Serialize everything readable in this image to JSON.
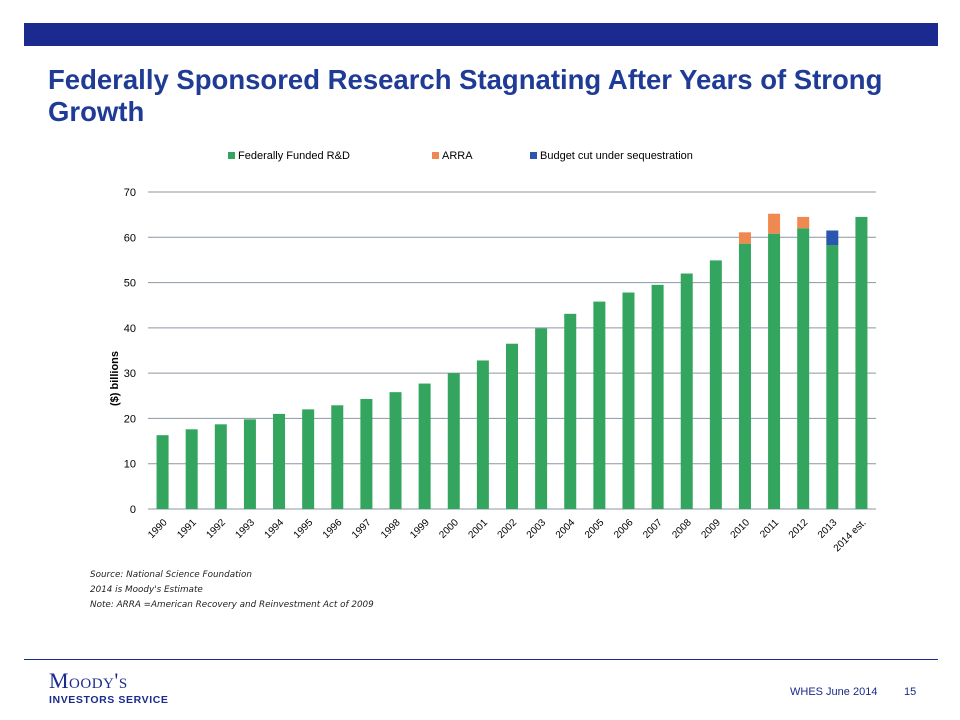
{
  "slide": {
    "title": "Federally Sponsored Research Stagnating After Years of Strong Growth",
    "notes": [
      "Source: National Science Foundation",
      "2014 is Moody's Estimate",
      "Note:  ARRA =American Recovery and Reinvestment Act of 2009"
    ],
    "footer_label": "WHES June 2014",
    "page_number": "15",
    "logo_word": "Moody's",
    "logo_sub": "INVESTORS SERVICE"
  },
  "colors": {
    "brand_blue": "#1b2a8e",
    "title_blue": "#1f3b96",
    "gridline": "#8c97a4",
    "axis_text": "#000000"
  },
  "chart_data": {
    "type": "bar",
    "stacked": true,
    "title": "",
    "xlabel": "",
    "ylabel": "($) billions",
    "ylim": [
      0,
      70
    ],
    "yticks": [
      0,
      10,
      20,
      30,
      40,
      50,
      60,
      70
    ],
    "grid": true,
    "legend_position": "top",
    "categories": [
      "1990",
      "1991",
      "1992",
      "1993",
      "1994",
      "1995",
      "1996",
      "1997",
      "1998",
      "1999",
      "2000",
      "2001",
      "2002",
      "2003",
      "2004",
      "2005",
      "2006",
      "2007",
      "2008",
      "2009",
      "2010",
      "2011",
      "2012",
      "2013",
      "2014 est."
    ],
    "series": [
      {
        "name": "Federally Funded R&D",
        "color": "#33a55e",
        "values": [
          16.3,
          17.6,
          18.7,
          19.8,
          21.0,
          22.0,
          22.9,
          24.3,
          25.8,
          27.7,
          30.0,
          32.8,
          36.5,
          39.9,
          43.1,
          45.8,
          47.8,
          49.5,
          52.0,
          54.9,
          58.6,
          60.8,
          62.0,
          58.3,
          64.5
        ]
      },
      {
        "name": "ARRA",
        "color": "#f0894f",
        "values": [
          0,
          0,
          0,
          0,
          0,
          0,
          0,
          0,
          0,
          0,
          0,
          0,
          0,
          0,
          0,
          0,
          0,
          0,
          0,
          0,
          2.5,
          4.4,
          2.5,
          0,
          0
        ]
      },
      {
        "name": "Budget cut under sequestration",
        "color": "#2a56b0",
        "values": [
          0,
          0,
          0,
          0,
          0,
          0,
          0,
          0,
          0,
          0,
          0,
          0,
          0,
          0,
          0,
          0,
          0,
          0,
          0,
          0,
          0,
          0,
          0,
          3.2,
          0
        ]
      }
    ]
  }
}
